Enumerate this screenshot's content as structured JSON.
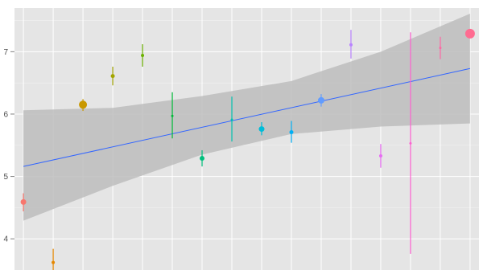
{
  "chart_data": {
    "type": "scatter",
    "title": "",
    "xlabel": "",
    "ylabel": "",
    "ylim": [
      3.5,
      7.7
    ],
    "xlim": [
      0.7,
      16.3
    ],
    "grid": true,
    "y_ticks": [
      4,
      5,
      6,
      7
    ],
    "y_tick_labels": [
      "4",
      "5",
      "6",
      "7"
    ],
    "points": [
      {
        "x": 1,
        "y": 4.59,
        "low": 4.44,
        "high": 4.73,
        "color": "#f8766d",
        "size": 3.5
      },
      {
        "x": 2,
        "y": 3.62,
        "low": 3.45,
        "high": 3.84,
        "color": "#e58700",
        "size": 2
      },
      {
        "x": 3,
        "y": 6.15,
        "low": 6.05,
        "high": 6.24,
        "color": "#c99800",
        "size": 5
      },
      {
        "x": 4,
        "y": 6.61,
        "low": 6.46,
        "high": 6.76,
        "color": "#a3a500",
        "size": 2.5
      },
      {
        "x": 5,
        "y": 6.94,
        "low": 6.76,
        "high": 7.12,
        "color": "#6bb100",
        "size": 2
      },
      {
        "x": 6,
        "y": 5.97,
        "low": 5.61,
        "high": 6.35,
        "color": "#00ba38",
        "size": 1.5
      },
      {
        "x": 7,
        "y": 5.29,
        "low": 5.16,
        "high": 5.42,
        "color": "#00bf7d",
        "size": 3
      },
      {
        "x": 8,
        "y": 5.91,
        "low": 5.56,
        "high": 6.28,
        "color": "#00c0af",
        "size": 1.5
      },
      {
        "x": 9,
        "y": 5.76,
        "low": 5.66,
        "high": 5.87,
        "color": "#00bcd8",
        "size": 3.5
      },
      {
        "x": 10,
        "y": 5.71,
        "low": 5.54,
        "high": 5.89,
        "color": "#00b0f6",
        "size": 2.5
      },
      {
        "x": 11,
        "y": 6.22,
        "low": 6.12,
        "high": 6.32,
        "color": "#619cff",
        "size": 4
      },
      {
        "x": 12,
        "y": 7.11,
        "low": 6.89,
        "high": 7.35,
        "color": "#b983ff",
        "size": 2
      },
      {
        "x": 13,
        "y": 5.33,
        "low": 5.14,
        "high": 5.52,
        "color": "#e76bf3",
        "size": 2
      },
      {
        "x": 14,
        "y": 5.53,
        "low": 3.76,
        "high": 7.31,
        "color": "#fd61d1",
        "size": 1.5
      },
      {
        "x": 15,
        "y": 7.06,
        "low": 6.88,
        "high": 7.24,
        "color": "#ff67a4",
        "size": 1.5
      },
      {
        "x": 16,
        "y": 7.29,
        "low": 7.24,
        "high": 7.35,
        "color": "#ff6c91",
        "size": 6
      }
    ],
    "trend": {
      "x": [
        1,
        4,
        7,
        10,
        13,
        16
      ],
      "fit": [
        5.16,
        5.47,
        5.79,
        6.1,
        6.41,
        6.73
      ],
      "lower": [
        4.29,
        4.85,
        5.35,
        5.68,
        5.8,
        5.85
      ],
      "upper": [
        6.06,
        6.1,
        6.29,
        6.53,
        7.0,
        7.61
      ],
      "line_color": "#3366ff",
      "band_color": "#bdbdbd"
    },
    "panel_color": "#e5e5e5",
    "grid_color": "#ffffff"
  }
}
